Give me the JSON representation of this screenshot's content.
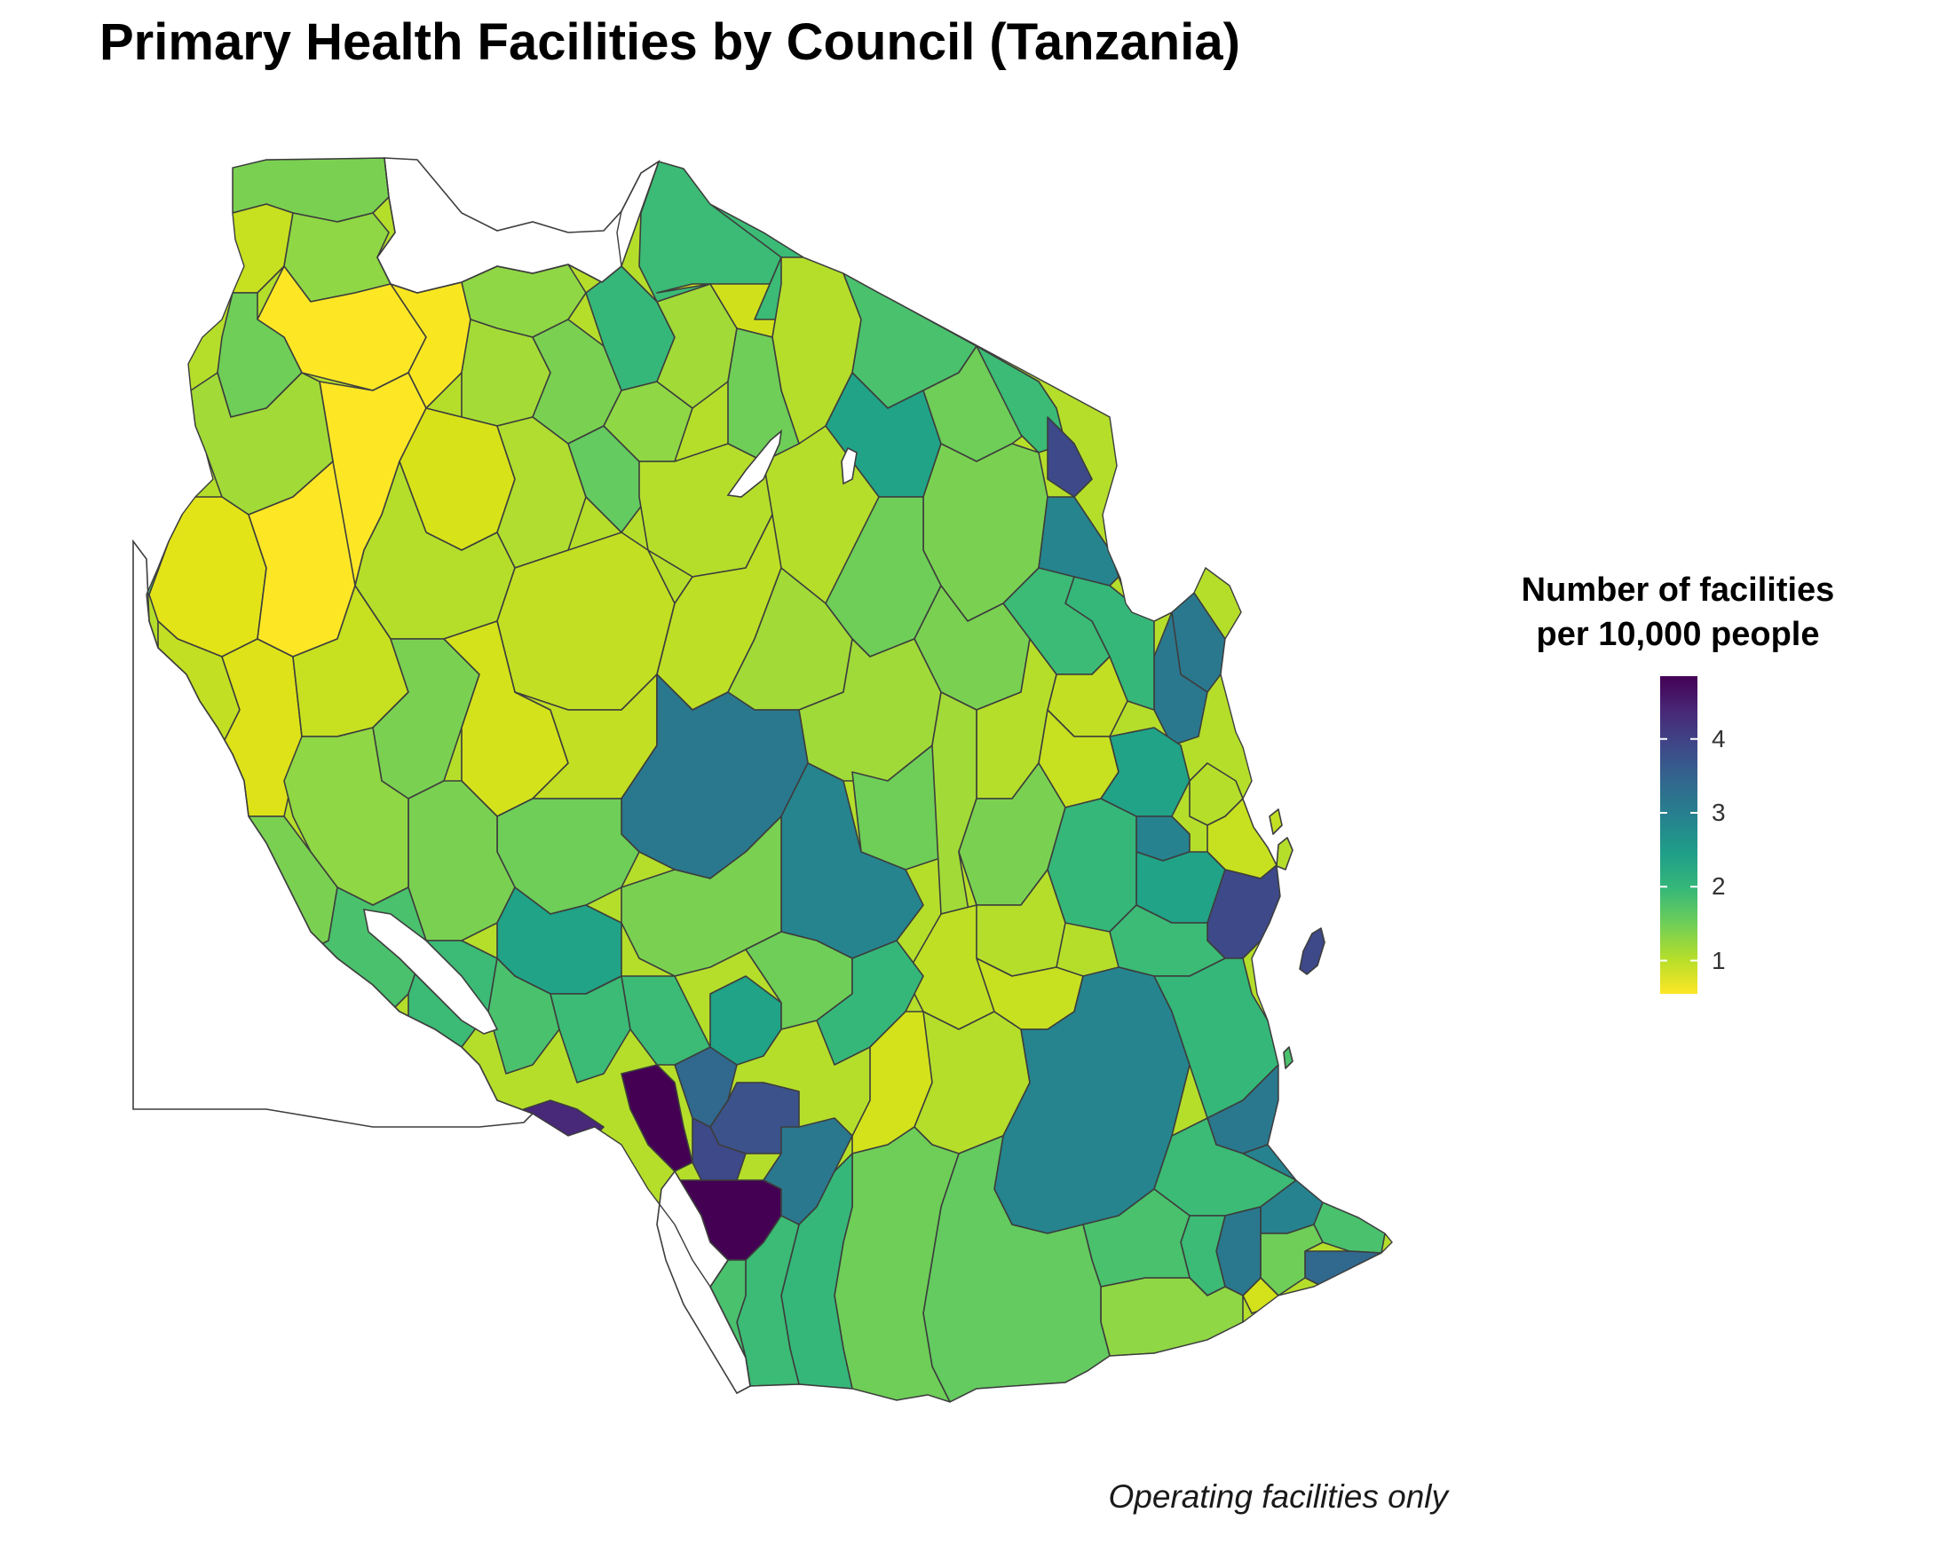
{
  "title": "Primary Health Facilities by Council (Tanzania)",
  "caption": "Operating facilities only",
  "legend": {
    "title_line1": "Number of facilities",
    "title_line2": "per 10,000 people",
    "ticks": [
      "1",
      "2",
      "3",
      "4"
    ],
    "tick_values": [
      1,
      2,
      3,
      4
    ],
    "min": 0.55,
    "max": 4.85,
    "colors": [
      "#fde725",
      "#b5de2b",
      "#6ece58",
      "#35b779",
      "#1f9e89",
      "#26828e",
      "#31688e",
      "#3e4989",
      "#482878",
      "#440154"
    ]
  },
  "chart_data": {
    "type": "choropleth",
    "title": "Primary Health Facilities by Council (Tanzania)",
    "legend_title": "Number of facilities per 10,000 people",
    "value_range": [
      0.55,
      4.85
    ],
    "color_scale": "viridis (reversed)",
    "ticks": [
      1,
      2,
      3,
      4
    ]
  }
}
